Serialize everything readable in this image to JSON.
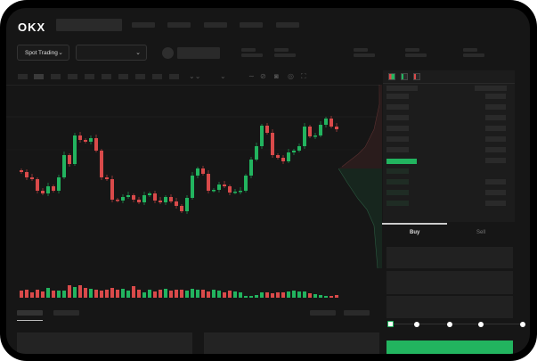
{
  "header": {
    "logo": "OKX"
  },
  "toolbar": {
    "market_select": "Spot Trading",
    "chevron": "⌄"
  },
  "orderbook": {
    "buy_tab": "Buy",
    "sell_tab": "Sell",
    "icons": [
      "orderbook-both-icon",
      "orderbook-bids-icon",
      "orderbook-asks-icon"
    ]
  },
  "colors": {
    "up": "#22b45f",
    "down": "#d94a4a",
    "background": "#161616"
  },
  "chart_data": {
    "type": "candlestick",
    "note_axes": "none printed",
    "open": [
      118,
      116,
      110,
      108,
      95,
      92,
      100,
      95,
      110,
      135,
      125,
      157,
      152,
      150,
      154,
      140,
      110,
      108,
      85,
      84,
      88,
      90,
      85,
      82,
      90,
      92,
      84,
      82,
      88,
      83,
      78,
      72,
      87,
      112,
      120,
      114,
      95,
      96,
      102,
      100,
      93,
      94,
      95,
      112,
      130,
      145,
      168,
      160,
      135,
      132,
      128,
      138,
      140,
      145,
      167,
      156,
      157,
      169,
      176,
      167
    ],
    "close": [
      116,
      110,
      108,
      95,
      92,
      100,
      95,
      110,
      135,
      125,
      157,
      152,
      150,
      154,
      140,
      110,
      108,
      85,
      84,
      88,
      90,
      85,
      82,
      90,
      92,
      84,
      82,
      88,
      83,
      78,
      72,
      87,
      112,
      120,
      114,
      95,
      96,
      102,
      100,
      93,
      94,
      95,
      112,
      130,
      145,
      168,
      160,
      135,
      132,
      128,
      138,
      140,
      145,
      167,
      156,
      157,
      169,
      176,
      167,
      164
    ],
    "volume": [
      8,
      9,
      6,
      9,
      7,
      11,
      8,
      8,
      8,
      14,
      12,
      14,
      11,
      10,
      9,
      8,
      9,
      11,
      9,
      10,
      8,
      13,
      9,
      6,
      9,
      7,
      9,
      10,
      8,
      9,
      9,
      8,
      10,
      9,
      9,
      7,
      9,
      8,
      6,
      8,
      7,
      6,
      2,
      2,
      3,
      6,
      6,
      5,
      6,
      6,
      7,
      8,
      7,
      7,
      5,
      4,
      3,
      2,
      2,
      3
    ]
  }
}
